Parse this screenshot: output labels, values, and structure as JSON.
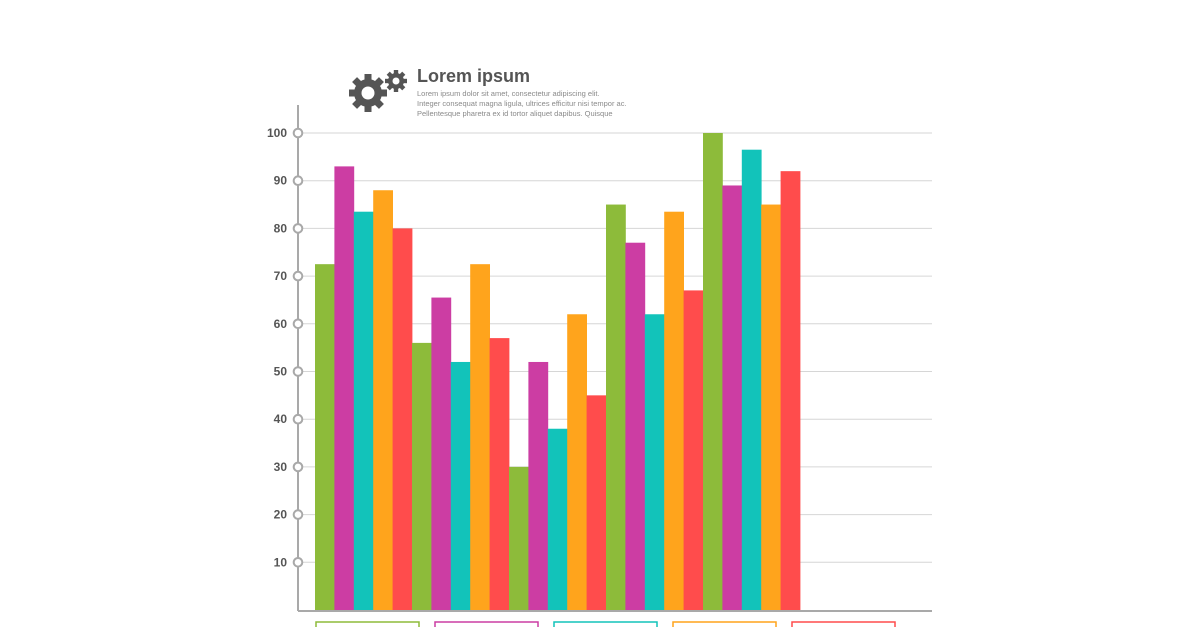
{
  "header": {
    "title": "Lorem ipsum",
    "description": [
      "Lorem ipsum dolor sit amet, consectetur adipiscing elit.",
      "Integer consequat magna ligula, ultrices efficitur nisi tempor ac.",
      "Pellentesque pharetra ex id tortor aliquet dapibus. Quisque"
    ],
    "icon": "gears-icon"
  },
  "colors": {
    "series": [
      "#8dbb3a",
      "#cc3da3",
      "#12c3ba",
      "#ffa41c",
      "#ff4c4c"
    ],
    "axis": "#a9a9a9",
    "grid": "#d6d6d6",
    "text": "#555555"
  },
  "chart_data": {
    "type": "bar",
    "title": "Lorem ipsum",
    "categories": [
      "",
      "",
      "",
      "",
      ""
    ],
    "ylim": [
      0,
      100
    ],
    "yticks": [
      10,
      20,
      30,
      40,
      50,
      60,
      70,
      80,
      90,
      100
    ],
    "grid": true,
    "legend": "bottom (outlined boxes, no text)",
    "series": [
      {
        "values": [
          72.5,
          56,
          30,
          85,
          100
        ]
      },
      {
        "values": [
          93,
          65.5,
          52,
          77,
          89
        ]
      },
      {
        "values": [
          83.5,
          52,
          38,
          62,
          96.5
        ]
      },
      {
        "values": [
          88,
          72.5,
          62,
          83.5,
          85
        ]
      },
      {
        "values": [
          80,
          57,
          45,
          67,
          92
        ]
      }
    ]
  }
}
